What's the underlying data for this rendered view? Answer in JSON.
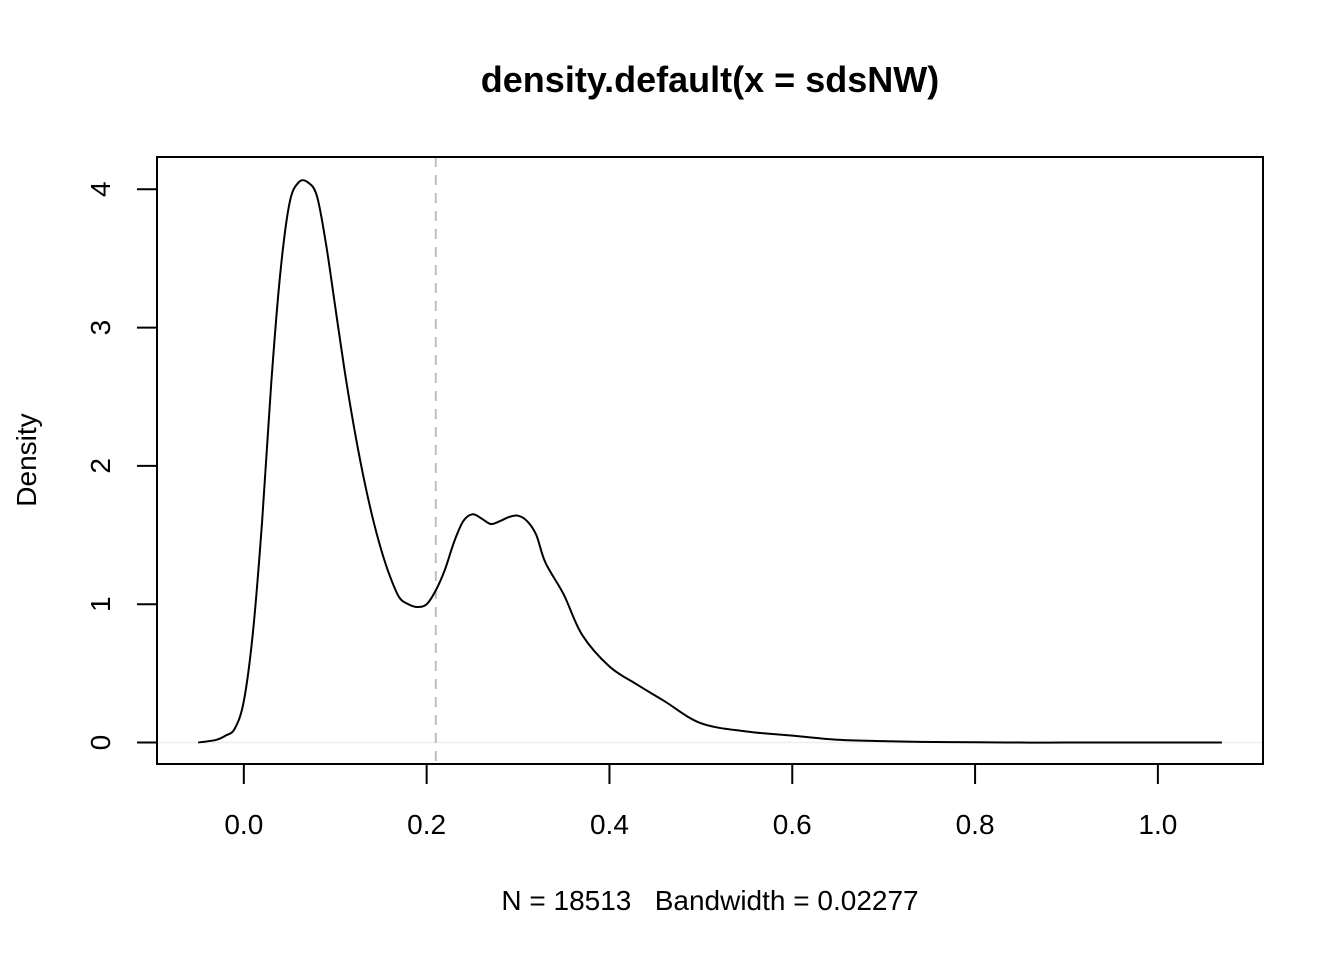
{
  "chart_data": {
    "type": "line",
    "title": "density.default(x = sdsNW)",
    "xlabel": "N = 18513   Bandwidth = 0.02277",
    "ylabel": "Density",
    "xlim": [
      -0.095,
      1.115
    ],
    "ylim": [
      -0.155,
      4.233
    ],
    "x_ticks": [
      0.0,
      0.2,
      0.4,
      0.6,
      0.8,
      1.0
    ],
    "x_tick_labels": [
      "0.0",
      "0.2",
      "0.4",
      "0.6",
      "0.8",
      "1.0"
    ],
    "y_ticks": [
      0,
      1,
      2,
      3,
      4
    ],
    "y_tick_labels": [
      "0",
      "1",
      "2",
      "3",
      "4"
    ],
    "grid": false,
    "colors": {
      "line": "#000000",
      "vline": "#bebebe",
      "zero_line": "#eeeeee"
    },
    "reference_lines": [
      {
        "orientation": "vertical",
        "x": 0.21,
        "style": "dashed",
        "color": "#bebebe"
      },
      {
        "orientation": "horizontal",
        "y": 0,
        "style": "solid",
        "color": "#eeeeee"
      }
    ],
    "series": [
      {
        "x": [
          -0.05,
          -0.03,
          -0.02,
          -0.01,
          0.0,
          0.01,
          0.02,
          0.03,
          0.04,
          0.05,
          0.06,
          0.07,
          0.08,
          0.09,
          0.1,
          0.11,
          0.12,
          0.13,
          0.14,
          0.15,
          0.16,
          0.17,
          0.18,
          0.19,
          0.2,
          0.21,
          0.22,
          0.23,
          0.24,
          0.25,
          0.26,
          0.27,
          0.28,
          0.29,
          0.3,
          0.31,
          0.32,
          0.33,
          0.35,
          0.37,
          0.4,
          0.43,
          0.46,
          0.5,
          0.55,
          0.6,
          0.65,
          0.7,
          0.74,
          0.8,
          0.85,
          0.9,
          0.95,
          1.0,
          1.07
        ],
        "y": [
          0.0,
          0.02,
          0.05,
          0.1,
          0.3,
          0.8,
          1.6,
          2.6,
          3.4,
          3.9,
          4.05,
          4.05,
          3.95,
          3.6,
          3.15,
          2.7,
          2.3,
          1.95,
          1.65,
          1.4,
          1.2,
          1.05,
          1.0,
          0.98,
          1.0,
          1.1,
          1.25,
          1.45,
          1.6,
          1.65,
          1.62,
          1.58,
          1.6,
          1.63,
          1.64,
          1.6,
          1.5,
          1.3,
          1.07,
          0.78,
          0.55,
          0.42,
          0.3,
          0.14,
          0.08,
          0.05,
          0.02,
          0.01,
          0.005,
          0.002,
          0.0,
          0.0,
          0.0,
          0.0,
          0.0
        ]
      }
    ]
  }
}
